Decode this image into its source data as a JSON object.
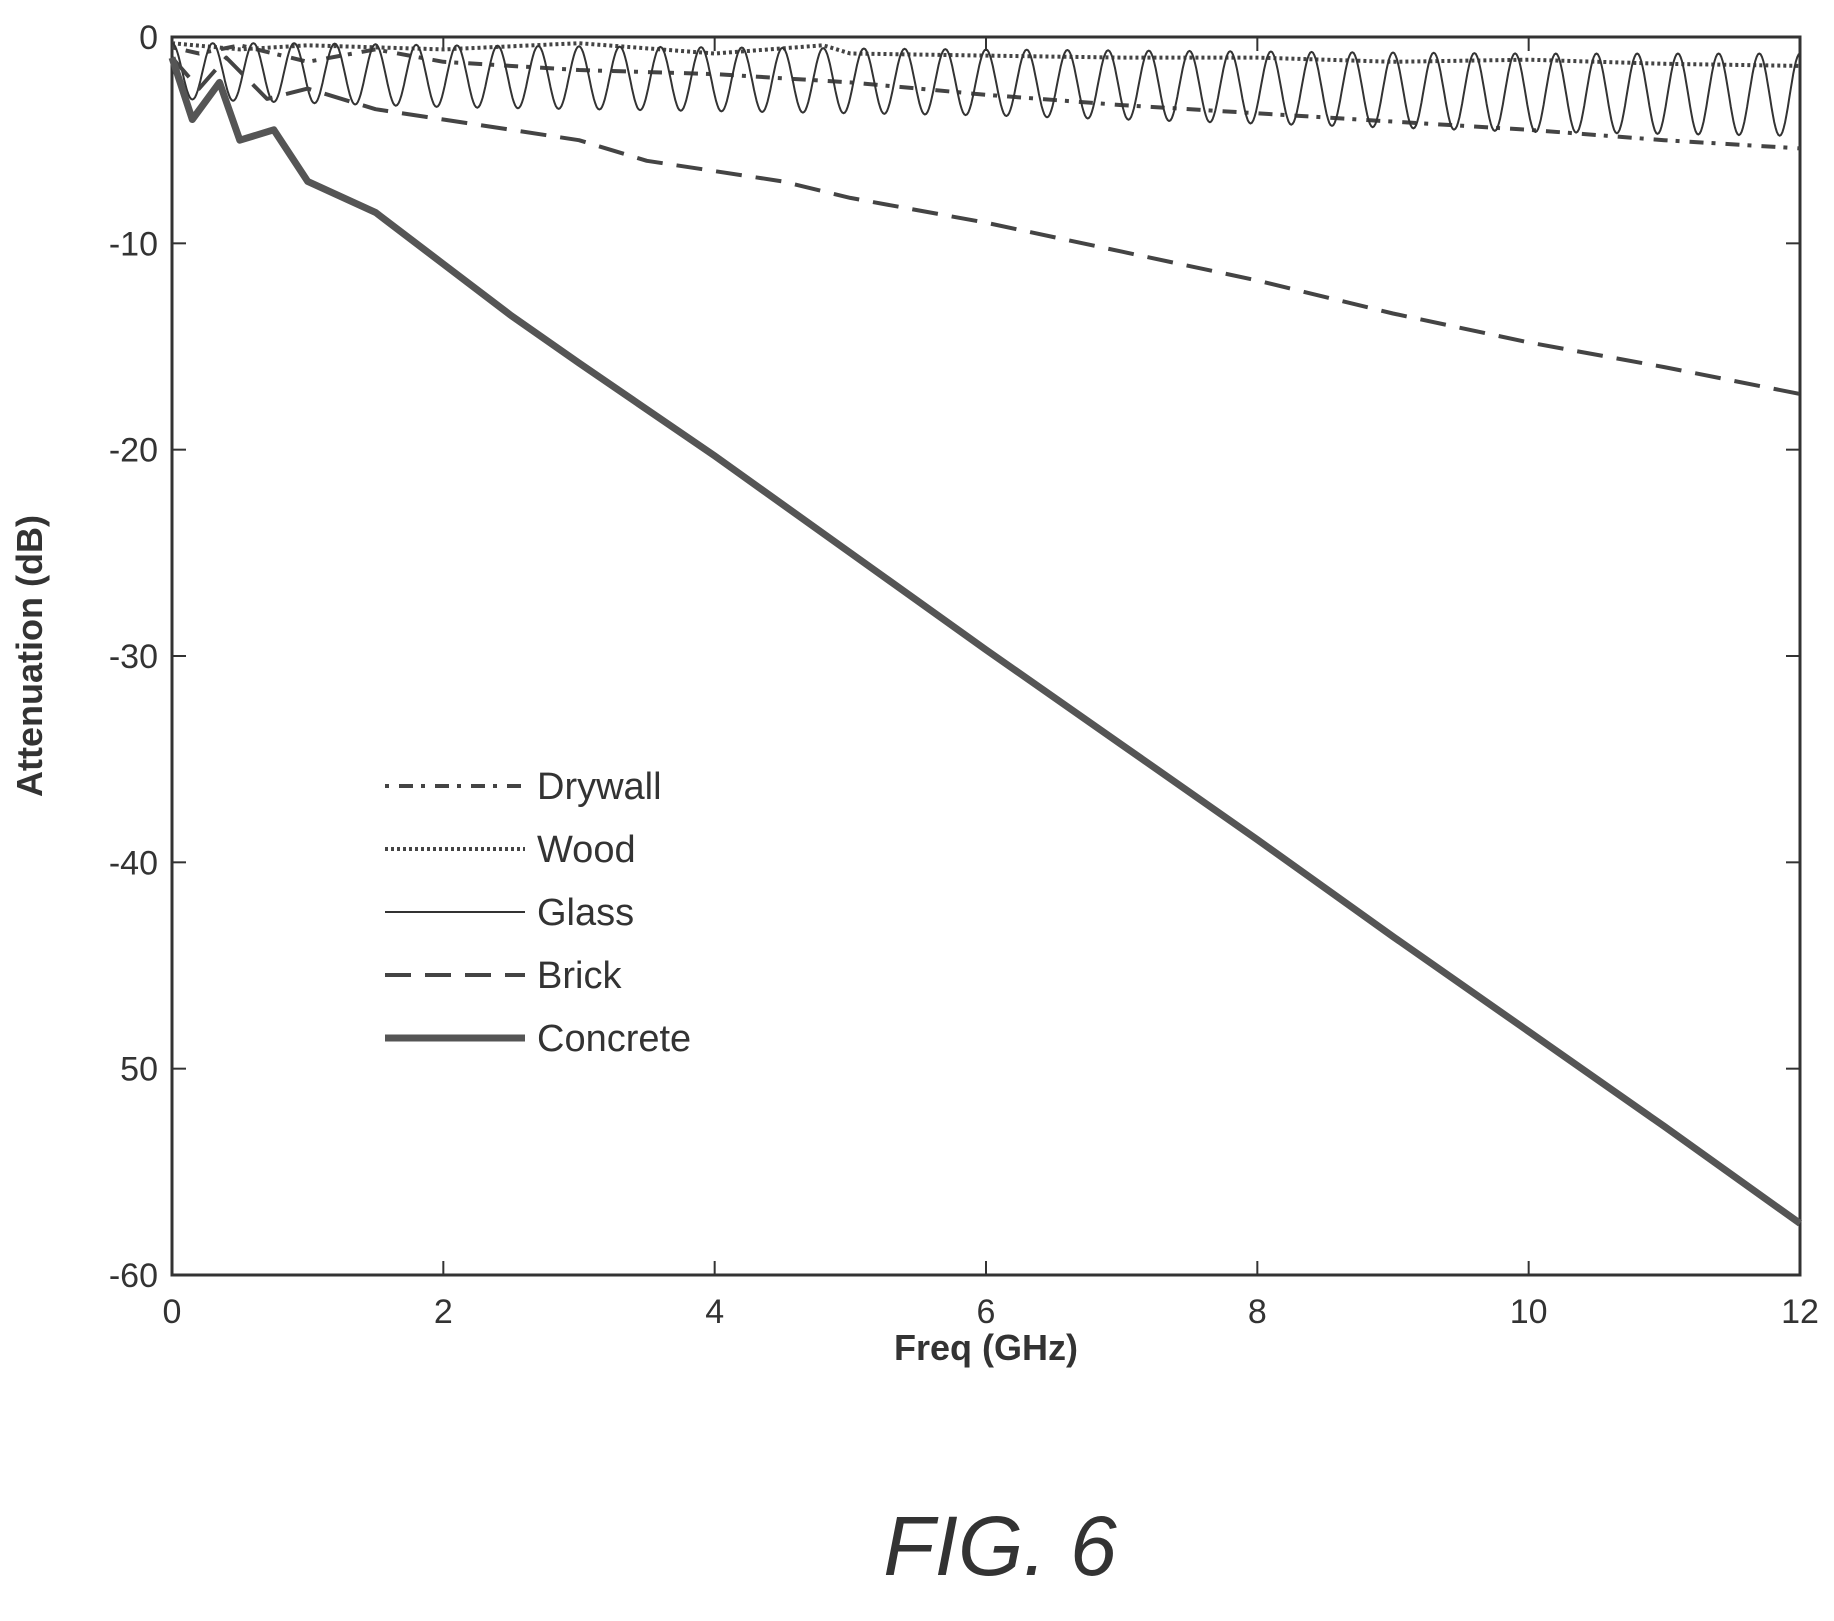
{
  "caption": "FIG. 6",
  "chart_data": {
    "type": "line",
    "title": "",
    "xlabel": "Freq (GHz)",
    "ylabel": "Attenuation (dB)",
    "xlim": [
      0,
      12
    ],
    "ylim": [
      -60,
      0
    ],
    "x_ticks": [
      0,
      2,
      4,
      6,
      8,
      10,
      12
    ],
    "x_tick_labels": [
      "0",
      "2",
      "4",
      "6",
      "8",
      "10",
      "12"
    ],
    "y_ticks": [
      0,
      -10,
      -20,
      -30,
      -40,
      -50,
      -60
    ],
    "y_tick_labels": [
      "0",
      "-10",
      "-20",
      "-30",
      "-40",
      "50",
      "-60"
    ],
    "grid": false,
    "legend_position": "lower-left (inside plot)",
    "series": [
      {
        "name": "Drywall",
        "style": "dash-dot",
        "x": [
          0,
          0.2,
          0.5,
          1,
          1.5,
          2,
          3,
          4,
          5,
          6,
          7,
          8,
          9,
          10,
          11,
          12
        ],
        "y": [
          -0.5,
          -0.8,
          -0.4,
          -1.2,
          -0.6,
          -1.2,
          -1.6,
          -1.8,
          -2.2,
          -2.8,
          -3.3,
          -3.7,
          -4.1,
          -4.5,
          -5.0,
          -5.4
        ]
      },
      {
        "name": "Wood",
        "style": "dotted",
        "x": [
          0,
          0.5,
          1,
          2,
          3,
          4,
          4.8,
          5,
          6,
          7,
          8,
          9,
          10,
          11,
          12
        ],
        "y": [
          -0.3,
          -0.6,
          -0.4,
          -0.6,
          -0.3,
          -0.8,
          -0.4,
          -0.8,
          -0.9,
          -1.0,
          -1.0,
          -1.2,
          -1.1,
          -1.3,
          -1.4
        ]
      },
      {
        "name": "Glass",
        "style": "solid-thin",
        "x": [
          0,
          1,
          2,
          4,
          6,
          8,
          10,
          12
        ],
        "y_envelope_max": [
          -0.3,
          -0.3,
          -0.4,
          -0.5,
          -0.6,
          -0.7,
          -0.8,
          -0.8
        ],
        "y_envelope_min": [
          -3.0,
          -3.2,
          -3.4,
          -3.6,
          -3.8,
          -4.2,
          -4.6,
          -4.8
        ],
        "oscillation_period_ghz": 0.3
      },
      {
        "name": "Brick",
        "style": "long-dash",
        "x": [
          0,
          0.2,
          0.4,
          0.7,
          1,
          1.5,
          2,
          2.5,
          3,
          3.5,
          4,
          4.5,
          5,
          6,
          7,
          8,
          9,
          10,
          11,
          12
        ],
        "y": [
          -1.0,
          -2.5,
          -1.0,
          -3.0,
          -2.5,
          -3.5,
          -4.0,
          -4.5,
          -5.0,
          -6.0,
          -6.5,
          -7.0,
          -7.8,
          -9.0,
          -10.4,
          -11.8,
          -13.4,
          -14.8,
          -16.0,
          -17.3
        ]
      },
      {
        "name": "Concrete",
        "style": "solid-thick",
        "x": [
          0,
          0.15,
          0.35,
          0.5,
          0.75,
          1,
          1.5,
          2,
          2.5,
          3,
          4,
          5,
          6,
          7,
          8,
          9,
          10,
          11,
          12
        ],
        "y": [
          -1.0,
          -4.0,
          -2.2,
          -5.0,
          -4.5,
          -7.0,
          -8.5,
          -11.0,
          -13.5,
          -15.8,
          -20.3,
          -25.0,
          -29.7,
          -34.3,
          -38.9,
          -43.6,
          -48.2,
          -52.8,
          -57.5
        ]
      }
    ]
  }
}
